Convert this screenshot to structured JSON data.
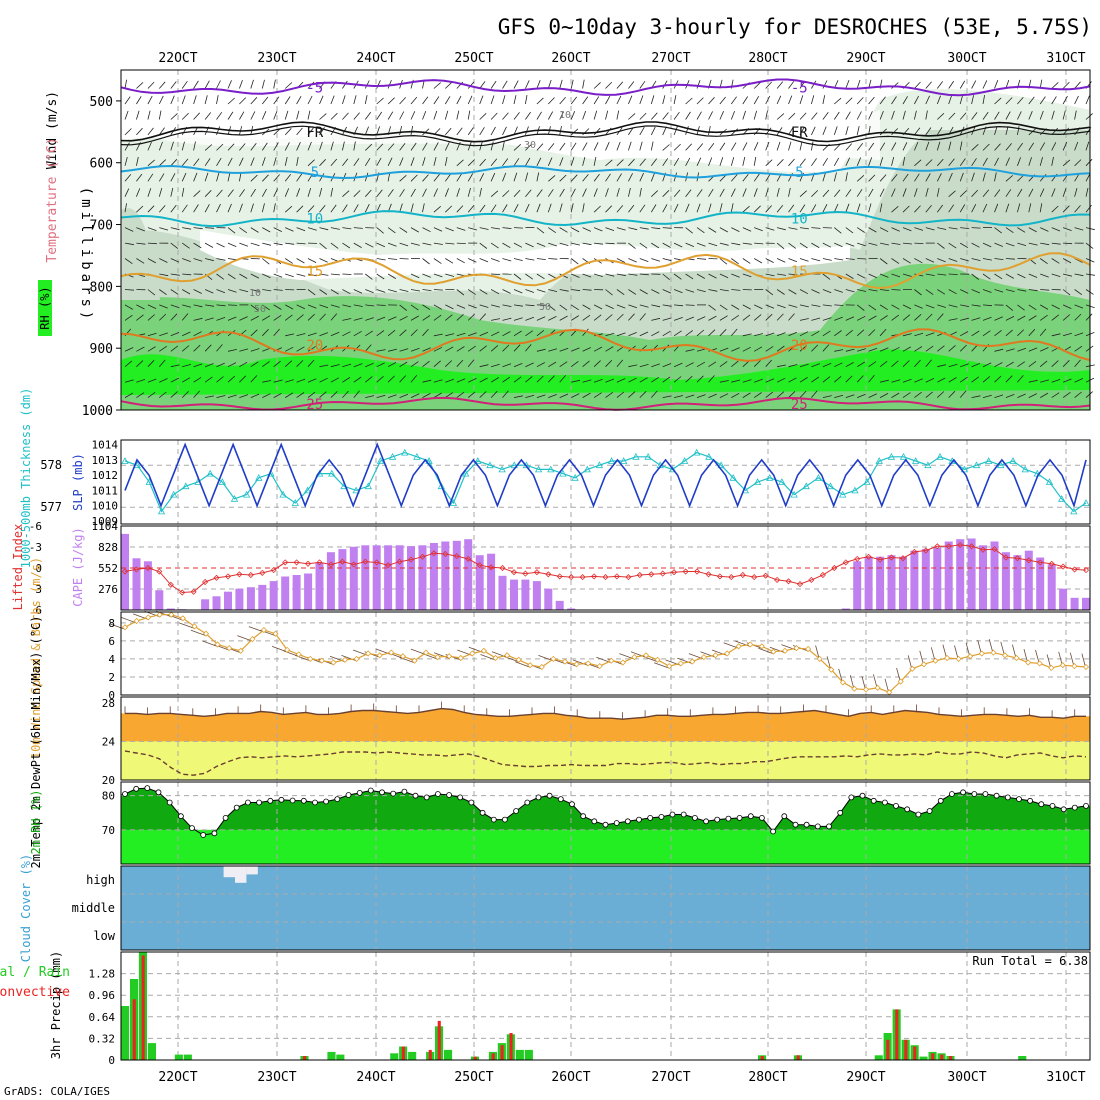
{
  "title": "GFS 0~10day 3-hourly for DESROCHES (53E, 5.75S)",
  "credit": "GrADS: COLA/IGES",
  "colors": {
    "rh_light": "#e6f2e6",
    "rh_mid": "#c9dcc9",
    "rh_dark": "#7ad37a",
    "rh_bright": "#22ee22",
    "temp5": "#7a1ec8",
    "temp_fr": "#111111",
    "temp_m5": "#1ea0dc",
    "temp_10": "#14b4c8",
    "temp_15": "#e0a030",
    "temp_20": "#e07820",
    "temp_25": "#d0207a",
    "slp": "#1e3cc8",
    "thick": "#20c0c8",
    "cape": "#c080f0",
    "li": "#e03030",
    "wind": "#e0a030",
    "temp_fill": "#f8a830",
    "dew_fill": "#f0f878",
    "rh2m_dark": "#10aa10",
    "rh2m_bright": "#22ee22",
    "cloud_bg": "#6aaed6",
    "cloud_bar": "#f0eef5",
    "precip_total": "#22cc22",
    "precip_conv": "#ee2222"
  },
  "chart_data": [
    {
      "type": "heatmap",
      "name": "Upper air",
      "ylabel": "(millibars)",
      "left_labels": [
        "Wind (m/s)",
        "Temperature (°C)",
        "RH (%)"
      ],
      "yticks": [
        500,
        600,
        700,
        800,
        900,
        1000
      ],
      "xticks_top": [
        "22OCT",
        "23OCT",
        "24OCT",
        "25OCT",
        "26OCT",
        "27OCT",
        "28OCT",
        "29OCT",
        "30OCT",
        "31OCT"
      ],
      "isotherms": [
        {
          "label": "-5",
          "level": 478,
          "amp": 8
        },
        {
          "label": "FR",
          "level": 550,
          "amp": 10
        },
        {
          "label": "5",
          "level": 615,
          "amp": 6
        },
        {
          "label": "10",
          "level": 690,
          "amp": 8
        },
        {
          "label": "15",
          "level": 775,
          "amp": 18
        },
        {
          "label": "20",
          "level": 895,
          "amp": 16
        },
        {
          "label": "25",
          "level": 990,
          "amp": 6
        }
      ],
      "rh_contour_labels": [
        "10",
        "30",
        "50"
      ]
    },
    {
      "type": "line",
      "name": "SLP and thickness",
      "ylabel_left": "1000-500mb Thickness (dm)",
      "ylabel_right": "SLP (mb)",
      "yticks_left": [
        577,
        578
      ],
      "yticks_right": [
        1009,
        1010,
        1011,
        1012,
        1013,
        1014
      ],
      "slp": [
        1011,
        1013,
        1012,
        1010,
        1012,
        1014,
        1012,
        1010,
        1012,
        1014,
        1012,
        1010,
        1012,
        1014,
        1012,
        1010,
        1012,
        1013,
        1012,
        1010,
        1012,
        1014,
        1012,
        1010,
        1012,
        1013,
        1012,
        1010,
        1012,
        1013,
        1012,
        1010,
        1012,
        1013,
        1012,
        1010,
        1012,
        1013,
        1012,
        1010,
        1012,
        1013,
        1012,
        1010,
        1012,
        1013,
        1012,
        1010,
        1012,
        1013,
        1012,
        1010,
        1012,
        1013,
        1012,
        1010,
        1012,
        1013,
        1012,
        1010,
        1012,
        1013,
        1012,
        1010,
        1012,
        1013,
        1012,
        1010,
        1012,
        1013,
        1012,
        1010,
        1012,
        1013,
        1012,
        1010,
        1012,
        1013,
        1012,
        1010,
        1013
      ],
      "thickness": [
        578.1,
        578.0,
        577.6,
        576.9,
        577.3,
        577.5,
        577.6,
        577.8,
        577.6,
        577.2,
        577.3,
        577.7,
        577.8,
        577.3,
        577.1,
        577.4,
        577.8,
        577.8,
        577.5,
        577.4,
        577.5,
        578.1,
        578.2,
        578.3,
        578.2,
        578.1,
        577.5,
        577.1,
        577.8,
        578.1,
        578.0,
        577.9,
        578.0,
        578.0,
        577.9,
        577.9,
        577.8,
        577.7,
        577.9,
        578.0,
        578.1,
        578.1,
        578.2,
        578.2,
        578.0,
        577.9,
        578.1,
        578.3,
        578.2,
        578.0,
        577.7,
        577.4,
        577.6,
        577.7,
        577.6,
        577.3,
        577.5,
        577.7,
        577.5,
        577.3,
        577.4,
        577.6,
        578.1,
        578.2,
        578.2,
        578.1,
        578.0,
        578.2,
        578.1,
        577.9,
        578.0,
        578.1,
        578.0,
        578.1,
        577.9,
        577.8,
        577.6,
        577.2,
        576.9,
        577.1
      ]
    },
    {
      "type": "bar",
      "name": "CAPE and Lifted Index",
      "ylabel_left": "Lifted Index",
      "ylabel_right": "CAPE (J/kg)",
      "yticks_left": [
        "-6",
        "-3",
        "0",
        "3",
        "6"
      ],
      "yticks_right": [
        276,
        552,
        828,
        1104
      ],
      "cape": [
        1000,
        680,
        640,
        260,
        20,
        10,
        0,
        140,
        180,
        240,
        280,
        300,
        330,
        380,
        440,
        460,
        480,
        620,
        760,
        800,
        830,
        850,
        850,
        850,
        850,
        840,
        850,
        880,
        900,
        910,
        930,
        720,
        740,
        450,
        400,
        400,
        380,
        280,
        120,
        20,
        0,
        0,
        0,
        0,
        0,
        0,
        0,
        0,
        0,
        0,
        0,
        0,
        0,
        0,
        0,
        0,
        0,
        0,
        0,
        0,
        0,
        0,
        0,
        20,
        640,
        700,
        700,
        720,
        700,
        780,
        800,
        820,
        900,
        930,
        940,
        850,
        900,
        760,
        720,
        780,
        690,
        600,
        280,
        160,
        160
      ],
      "lifted_index": [
        0.5,
        0.2,
        0,
        0.5,
        2.4,
        3.5,
        3.4,
        2.0,
        1.4,
        1.2,
        0.9,
        1.0,
        0.7,
        0.3,
        -0.8,
        -0.8,
        -0.6,
        -0.8,
        -0.5,
        -0.9,
        -0.5,
        -0.9,
        -0.8,
        -0.4,
        -0.9,
        -1.2,
        -1.6,
        -2.1,
        -2.0,
        -1.7,
        -1.3,
        -0.4,
        -0.1,
        0,
        0.6,
        0.8,
        0.6,
        0.9,
        1.2,
        1.3,
        1.3,
        1.2,
        1.3,
        1.2,
        1.3,
        1.0,
        0.9,
        0.8,
        0.6,
        0.5,
        0.5,
        0.9,
        1.2,
        1.3,
        1.0,
        1.3,
        1.1,
        1.7,
        1.9,
        2.3,
        1.7,
        1.0,
        0.0,
        -0.8,
        -1.3,
        -1.6,
        -1.2,
        -1.5,
        -1.4,
        -2.3,
        -2.5,
        -3.1,
        -3.1,
        -3.3,
        -3.1,
        -2.6,
        -2.7,
        -1.5,
        -1.4,
        -1.1,
        -0.8,
        -0.6,
        -0.2,
        0.2,
        0.3
      ]
    },
    {
      "type": "line",
      "name": "10m Wind",
      "ylabel": "10m Wind Speed & Barbs (m/s)",
      "yticks": [
        0,
        2,
        4,
        6,
        8
      ],
      "speed": [
        7.5,
        8.2,
        8.6,
        8.9,
        8.9,
        8.5,
        7.6,
        6.8,
        5.6,
        5.2,
        4.9,
        6.2,
        7.2,
        6.8,
        5.0,
        4.5,
        4.0,
        3.8,
        3.6,
        3.9,
        4.0,
        4.6,
        4.4,
        4.7,
        4.3,
        3.8,
        4.7,
        4.2,
        4.3,
        4.1,
        4.6,
        4.9,
        4.1,
        4.4,
        3.9,
        3.3,
        3.1,
        4.0,
        3.7,
        3.4,
        3.5,
        3.2,
        3.8,
        3.6,
        4.2,
        4.4,
        3.9,
        3.2,
        3.5,
        3.7,
        4.2,
        4.4,
        4.6,
        5.4,
        5.6,
        5.4,
        4.8,
        4.9,
        5.2,
        5.1,
        4.0,
        2.8,
        1.4,
        0.7,
        0.6,
        0.8,
        0.3,
        1.5,
        2.9,
        3.4,
        3.8,
        4.1,
        4.0,
        4.3,
        4.6,
        4.7,
        4.4,
        4.1,
        3.6,
        3.5,
        3.0,
        3.3,
        3.2,
        3.1
      ]
    },
    {
      "type": "area",
      "name": "2m Temperature",
      "ylabel": "2m Temp 2m DewPt (6hr Min/Max) (°C)",
      "yticks": [
        20,
        24,
        28
      ],
      "temp": [
        26.9,
        26.9,
        26.8,
        26.9,
        26.9,
        26.8,
        26.7,
        26.6,
        26.7,
        26.9,
        26.9,
        26.9,
        27.1,
        27.0,
        26.8,
        26.9,
        27.0,
        26.8,
        26.8,
        26.9,
        27.1,
        27.2,
        27.2,
        27.1,
        27.0,
        26.9,
        27.0,
        27.2,
        27.4,
        27.3,
        27.0,
        26.8,
        26.7,
        26.6,
        26.6,
        26.7,
        26.8,
        26.9,
        26.9,
        26.7,
        26.6,
        26.4,
        26.4,
        26.4,
        26.3,
        26.4,
        26.5,
        26.7,
        26.7,
        26.6,
        26.6,
        26.7,
        26.8,
        26.8,
        26.9,
        27.0,
        27.0,
        26.9,
        26.9,
        27.0,
        27.1,
        27.2,
        27.0,
        26.8,
        26.6,
        26.9,
        27.0,
        26.8,
        27.0,
        27.2,
        27.1,
        27.0,
        26.8,
        26.7,
        26.6,
        26.7,
        26.8,
        26.8,
        26.7,
        26.6,
        26.7,
        26.5,
        26.5,
        26.4,
        26.6,
        26.6
      ],
      "dewpoint": [
        23.0,
        22.8,
        22.6,
        22.2,
        21.3,
        20.6,
        20.5,
        20.7,
        21.4,
        21.9,
        22.3,
        22.4,
        22.3,
        22.4,
        22.5,
        22.4,
        22.5,
        22.6,
        22.7,
        22.9,
        22.9,
        22.9,
        22.8,
        22.9,
        22.8,
        22.7,
        22.6,
        22.6,
        22.5,
        22.6,
        22.7,
        22.4,
        22.0,
        21.6,
        21.5,
        21.4,
        21.4,
        21.5,
        21.5,
        21.6,
        21.5,
        21.5,
        21.5,
        21.7,
        21.7,
        21.6,
        21.7,
        21.8,
        21.8,
        21.6,
        21.7,
        21.8,
        21.6,
        21.7,
        21.7,
        21.9,
        21.9,
        22.1,
        22.3,
        22.4,
        22.4,
        22.4,
        22.4,
        22.5,
        22.4,
        22.6,
        22.7,
        22.6,
        22.6,
        22.7,
        22.6,
        22.9,
        22.7,
        22.7,
        22.9,
        22.8,
        22.5,
        22.3,
        22.6,
        22.7,
        22.8,
        22.5,
        22.3,
        22.5,
        22.4
      ]
    },
    {
      "type": "area",
      "name": "2m RH",
      "ylabel": "2m RH (%)",
      "yticks": [
        70,
        80
      ],
      "rh": [
        80.5,
        82.0,
        82.2,
        81.0,
        78.0,
        74.0,
        70.5,
        68.5,
        69.0,
        73.5,
        76.5,
        78.0,
        78.0,
        78.5,
        78.8,
        78.6,
        78.5,
        78.0,
        78.3,
        79.0,
        80.2,
        80.8,
        81.5,
        81.0,
        80.6,
        81.2,
        80.0,
        79.5,
        80.5,
        80.2,
        79.5,
        78.0,
        75.0,
        73.0,
        73.0,
        75.5,
        78.0,
        79.5,
        80.0,
        79.0,
        77.5,
        74.0,
        72.5,
        71.5,
        72.0,
        72.5,
        73.0,
        73.5,
        73.8,
        74.5,
        74.5,
        73.5,
        72.5,
        73.0,
        73.3,
        73.5,
        74.0,
        73.5,
        69.5,
        74.0,
        71.5,
        71.5,
        71.0,
        71.0,
        75.0,
        79.5,
        80.0,
        78.5,
        78.0,
        77.0,
        76.0,
        74.5,
        75.5,
        78.5,
        80.5,
        81.0,
        80.5,
        80.5,
        80.0,
        79.5,
        79.0,
        78.5,
        77.5,
        77.0,
        76.0,
        76.5,
        77.0
      ]
    },
    {
      "type": "bar",
      "name": "Cloud Cover",
      "ylabel": "Cloud Cover (%)",
      "levels": [
        "high",
        "middle",
        "low"
      ],
      "high": [
        0,
        0,
        0,
        0,
        0,
        0,
        0,
        0,
        0,
        40,
        60,
        30,
        0,
        0,
        0,
        0,
        0,
        0,
        0,
        0,
        0,
        0,
        0,
        0,
        0,
        0,
        0,
        0,
        0,
        0,
        0,
        0,
        0,
        0,
        0,
        0,
        0,
        0,
        0,
        0,
        0,
        0,
        0,
        0,
        0,
        0,
        0,
        0,
        0,
        0,
        0,
        0,
        0,
        0,
        0,
        0,
        0,
        0,
        0,
        0,
        0,
        0,
        0,
        0,
        0,
        0,
        0,
        0,
        0,
        0,
        0,
        0,
        0,
        0,
        0,
        0,
        0,
        0,
        0,
        0,
        0,
        0,
        0,
        0,
        0
      ],
      "low": [
        0,
        0,
        0,
        0,
        0,
        0,
        0,
        0,
        0,
        0,
        0,
        0,
        0,
        0,
        0,
        0,
        0,
        0,
        0,
        0,
        0,
        0,
        0,
        0,
        0,
        0,
        0,
        0,
        0,
        0,
        0,
        0,
        0,
        0,
        0,
        0,
        0,
        0,
        0,
        0,
        0,
        0,
        0,
        0,
        0,
        0,
        0,
        0,
        0,
        0,
        0,
        0,
        0,
        0,
        0,
        0,
        0,
        0,
        0,
        0,
        0,
        0,
        0,
        0,
        0,
        0,
        0,
        0,
        0,
        0,
        0,
        0,
        0,
        0,
        0,
        0,
        0,
        0,
        0,
        0,
        0,
        0,
        0,
        0,
        0
      ]
    },
    {
      "type": "bar",
      "name": "3hr Precip",
      "ylabel": "3hr Precip (mm)",
      "left_labels": [
        "Total / Rain",
        "Convective"
      ],
      "yticks": [
        "0",
        "0.32",
        "0.64",
        "0.96",
        "1.28"
      ],
      "xticks_bottom": [
        "22OCT",
        "23OCT",
        "24OCT",
        "25OCT",
        "26OCT",
        "27OCT",
        "28OCT",
        "29OCT",
        "30OCT",
        "31OCT"
      ],
      "run_total_label": "Run Total = 6.38",
      "total": [
        0.8,
        1.2,
        1.6,
        0.25,
        0,
        0,
        0.08,
        0.08,
        0,
        0,
        0,
        0,
        0,
        0,
        0,
        0,
        0,
        0,
        0,
        0,
        0.06,
        0,
        0,
        0.12,
        0.08,
        0,
        0,
        0,
        0,
        0,
        0.1,
        0.2,
        0.12,
        0,
        0.12,
        0.5,
        0.15,
        0,
        0,
        0.05,
        0,
        0.12,
        0.25,
        0.38,
        0.15,
        0.15,
        0,
        0,
        0,
        0,
        0,
        0,
        0,
        0,
        0,
        0,
        0,
        0,
        0,
        0,
        0,
        0,
        0,
        0,
        0,
        0,
        0,
        0,
        0,
        0,
        0,
        0.07,
        0,
        0,
        0,
        0.07,
        0,
        0,
        0,
        0,
        0,
        0,
        0,
        0,
        0.07,
        0.4,
        0.75,
        0.3,
        0.22,
        0.05,
        0.12,
        0.1,
        0.06,
        0,
        0,
        0,
        0,
        0,
        0,
        0,
        0.06,
        0,
        0,
        0,
        0,
        0,
        0,
        0
      ],
      "conv": [
        0,
        0.9,
        1.55,
        0,
        0,
        0,
        0,
        0,
        0,
        0,
        0,
        0,
        0,
        0,
        0,
        0,
        0,
        0,
        0,
        0,
        0.06,
        0,
        0,
        0,
        0,
        0,
        0,
        0,
        0,
        0,
        0,
        0.2,
        0,
        0,
        0.15,
        0.58,
        0,
        0,
        0,
        0.05,
        0,
        0.1,
        0.22,
        0.4,
        0,
        0,
        0,
        0,
        0,
        0,
        0,
        0,
        0,
        0,
        0,
        0,
        0,
        0,
        0,
        0,
        0,
        0,
        0,
        0,
        0,
        0,
        0,
        0,
        0,
        0,
        0,
        0.06,
        0,
        0,
        0,
        0.07,
        0,
        0,
        0,
        0,
        0,
        0,
        0,
        0,
        0,
        0.3,
        0.75,
        0.3,
        0.2,
        0,
        0.1,
        0.08,
        0.06,
        0,
        0,
        0,
        0,
        0,
        0,
        0,
        0,
        0,
        0,
        0,
        0,
        0,
        0,
        0
      ]
    }
  ]
}
